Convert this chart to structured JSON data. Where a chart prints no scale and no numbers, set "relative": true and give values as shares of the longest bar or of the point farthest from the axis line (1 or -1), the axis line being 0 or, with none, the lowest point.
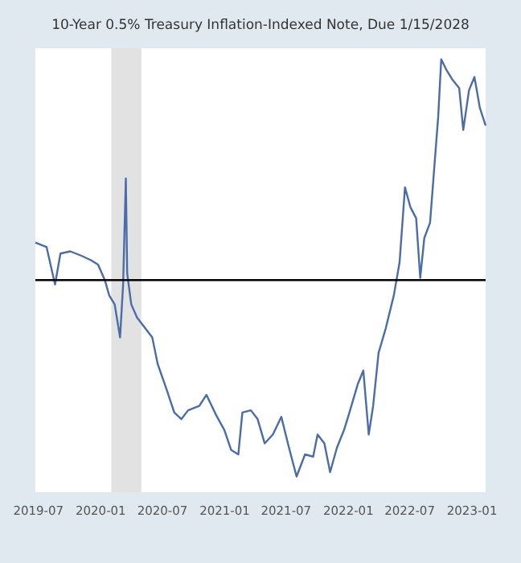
{
  "chart_data": {
    "type": "line",
    "title": "10-Year 0.5% Treasury Inflation-Indexed Note, Due 1/15/2028",
    "relative": true,
    "color": "#4a6ca8",
    "x": [
      "2019-06-22",
      "2019-07-25",
      "2019-08-19",
      "2019-09-04",
      "2019-10-03",
      "2019-11-05",
      "2019-12-03",
      "2019-12-24",
      "2020-01-13",
      "2020-01-26",
      "2020-02-11",
      "2020-02-27",
      "2020-03-07",
      "2020-03-15",
      "2020-03-19",
      "2020-03-31",
      "2020-04-17",
      "2020-05-07",
      "2020-06-01",
      "2020-06-17",
      "2020-07-12",
      "2020-08-05",
      "2020-08-26",
      "2020-09-15",
      "2020-10-18",
      "2020-11-08",
      "2020-12-06",
      "2020-12-31",
      "2021-01-20",
      "2021-02-10",
      "2021-02-22",
      "2021-03-19",
      "2021-04-08",
      "2021-04-29",
      "2021-05-23",
      "2021-06-17",
      "2021-07-08",
      "2021-08-01",
      "2021-08-26",
      "2021-09-19",
      "2021-10-02",
      "2021-10-22",
      "2021-11-08",
      "2021-11-28",
      "2021-12-19",
      "2022-01-04",
      "2022-01-29",
      "2022-02-14",
      "2022-03-02",
      "2022-03-15",
      "2022-03-31",
      "2022-04-21",
      "2022-05-15",
      "2022-06-01",
      "2022-06-17",
      "2022-07-03",
      "2022-07-20",
      "2022-08-01",
      "2022-08-13",
      "2022-08-30",
      "2022-09-11",
      "2022-09-23",
      "2022-10-02",
      "2022-10-18",
      "2022-11-03",
      "2022-11-24",
      "2022-12-06",
      "2022-12-23",
      "2023-01-08",
      "2023-01-24",
      "2023-02-10"
    ],
    "values": [
      0.17,
      0.15,
      -0.02,
      0.12,
      0.13,
      0.11,
      0.09,
      0.07,
      0,
      -0.07,
      -0.11,
      -0.26,
      -0.02,
      0.46,
      0.03,
      -0.11,
      -0.17,
      -0.21,
      -0.26,
      -0.38,
      -0.49,
      -0.6,
      -0.63,
      -0.59,
      -0.57,
      -0.52,
      -0.61,
      -0.68,
      -0.77,
      -0.79,
      -0.6,
      -0.59,
      -0.63,
      -0.74,
      -0.7,
      -0.62,
      -0.75,
      -0.89,
      -0.79,
      -0.8,
      -0.7,
      -0.74,
      -0.87,
      -0.76,
      -0.68,
      -0.6,
      -0.47,
      -0.41,
      -0.7,
      -0.57,
      -0.33,
      -0.22,
      -0.07,
      0.08,
      0.42,
      0.33,
      0.28,
      0.01,
      0.19,
      0.26,
      0.5,
      0.74,
      1,
      0.95,
      0.91,
      0.87,
      0.68,
      0.86,
      0.92,
      0.78,
      0.7
    ],
    "xlim": [
      "2019-06-22",
      "2023-02-10"
    ],
    "xticks": [
      {
        "value": "2019-07-01",
        "label": "2019-07"
      },
      {
        "value": "2020-01-01",
        "label": "2020-01"
      },
      {
        "value": "2020-07-01",
        "label": "2020-07"
      },
      {
        "value": "2021-01-01",
        "label": "2021-01"
      },
      {
        "value": "2021-07-01",
        "label": "2021-07"
      },
      {
        "value": "2022-01-01",
        "label": "2022-01"
      },
      {
        "value": "2022-07-01",
        "label": "2022-07"
      },
      {
        "value": "2023-01-01",
        "label": "2023-01"
      }
    ],
    "bands": [
      {
        "axis": "x",
        "from": "2020-02-01",
        "to": "2020-04-30",
        "color": "#e2e2e2"
      }
    ]
  }
}
